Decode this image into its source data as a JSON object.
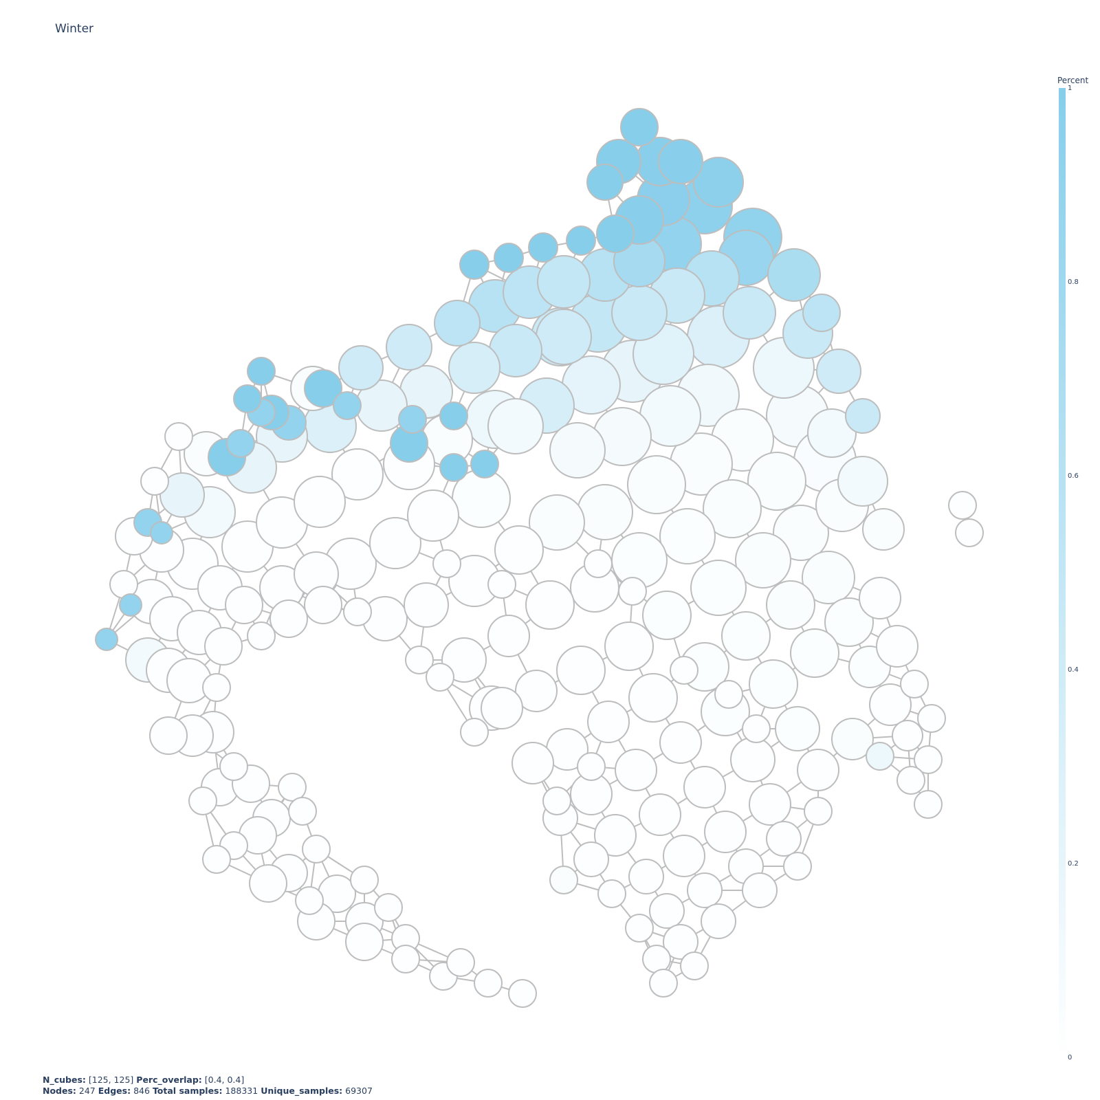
{
  "title": "Winter",
  "colorbar": {
    "title": "Percent",
    "ticks": [
      "1",
      "0.8",
      "0.6",
      "0.4",
      "0.2",
      "0"
    ],
    "color_low": "#ffffff",
    "color_high": "#87ceeb"
  },
  "footer": {
    "n_cubes_label": "N_cubes:",
    "n_cubes": "[125, 125]",
    "perc_overlap_label": "Perc_overlap:",
    "perc_overlap": "[0.4, 0.4]",
    "nodes_label": "Nodes:",
    "nodes": "247",
    "edges_label": "Edges:",
    "edges": "846",
    "total_label": "Total samples:",
    "total": "188331",
    "unique_label": "Unique_samples:",
    "unique": "69307"
  },
  "style": {
    "edge_color": "#bdbdbd",
    "node_outline": "#bdbdbd"
  }
}
